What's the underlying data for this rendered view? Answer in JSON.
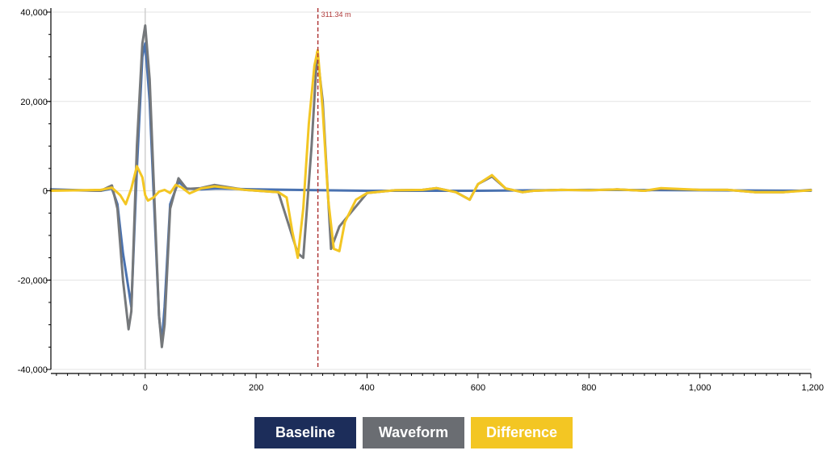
{
  "chart_data": {
    "type": "line",
    "title": "",
    "xlabel": "",
    "ylabel": "",
    "xlim": [
      -170,
      1200
    ],
    "ylim": [
      -40000,
      40000
    ],
    "x_ticks": [
      0,
      200,
      400,
      600,
      800,
      1000,
      1200
    ],
    "x_tick_labels": [
      "0",
      "200",
      "400",
      "600",
      "800",
      "1,000",
      "1,200"
    ],
    "y_ticks": [
      -40000,
      -20000,
      0,
      20000,
      40000
    ],
    "y_tick_labels": [
      "-40,000",
      "-20,000",
      "0",
      "20,000",
      "40,000"
    ],
    "grid": "horizontal",
    "zero_line_x": 0,
    "marker": {
      "x": 311.34,
      "label": "311.34 m",
      "color": "#b03a3a"
    },
    "series": [
      {
        "name": "Baseline",
        "color": "#4a72b0",
        "x": [
          -170,
          -80,
          -60,
          -50,
          -40,
          -30,
          -25,
          -15,
          -5,
          0,
          8,
          15,
          25,
          30,
          35,
          45,
          60,
          75,
          100,
          130,
          200,
          400,
          600,
          800,
          1000,
          1200
        ],
        "y": [
          300,
          0,
          500,
          -3000,
          -14000,
          -22000,
          -26000,
          5000,
          30000,
          33000,
          20000,
          0,
          -28000,
          -34000,
          -26000,
          -3000,
          2000,
          500,
          300,
          500,
          300,
          0,
          0,
          200,
          100,
          0
        ]
      },
      {
        "name": "Waveform",
        "color": "#75787b",
        "x": [
          -170,
          -80,
          -60,
          -50,
          -40,
          -30,
          -25,
          -15,
          -5,
          0,
          8,
          15,
          25,
          30,
          35,
          45,
          60,
          75,
          100,
          125,
          180,
          240,
          275,
          285,
          300,
          310,
          320,
          335,
          350,
          400,
          450,
          500,
          525,
          560,
          585,
          600,
          625,
          650,
          680,
          700,
          750,
          800,
          850,
          900,
          930,
          1000,
          1050,
          1100,
          1150,
          1200
        ],
        "y": [
          200,
          0,
          1200,
          -4000,
          -20000,
          -31000,
          -27000,
          10000,
          33000,
          37000,
          25000,
          3000,
          -28000,
          -35000,
          -30000,
          -4000,
          2800,
          400,
          600,
          1300,
          200,
          -300,
          -14000,
          -15000,
          10000,
          31000,
          20000,
          -13000,
          -8000,
          -500,
          100,
          200,
          600,
          -300,
          -2000,
          1500,
          3200,
          500,
          -300,
          0,
          200,
          100,
          300,
          0,
          400,
          200,
          200,
          -300,
          -300,
          200
        ]
      },
      {
        "name": "Difference",
        "color": "#f3c623",
        "x": [
          -170,
          -80,
          -60,
          -45,
          -35,
          -25,
          -15,
          -5,
          0,
          5,
          15,
          25,
          35,
          45,
          55,
          65,
          80,
          100,
          125,
          180,
          240,
          255,
          265,
          275,
          285,
          295,
          305,
          311,
          320,
          330,
          340,
          350,
          360,
          380,
          400,
          450,
          500,
          525,
          560,
          585,
          600,
          625,
          650,
          680,
          700,
          750,
          800,
          850,
          900,
          930,
          1000,
          1050,
          1100,
          1150,
          1200
        ],
        "y": [
          0,
          200,
          700,
          -1000,
          -3000,
          500,
          5500,
          3000,
          -1000,
          -2200,
          -1500,
          -200,
          200,
          -500,
          1300,
          800,
          -600,
          500,
          1000,
          200,
          -300,
          -1500,
          -9000,
          -15000,
          -4000,
          15000,
          28000,
          31500,
          18000,
          -2000,
          -13000,
          -13500,
          -7000,
          -2000,
          -500,
          100,
          200,
          600,
          -300,
          -2000,
          1500,
          3500,
          500,
          -300,
          0,
          200,
          100,
          300,
          0,
          600,
          200,
          200,
          -300,
          -300,
          100
        ]
      }
    ]
  },
  "legend": {
    "baseline": {
      "label": "Baseline",
      "color": "#1c2d5a"
    },
    "waveform": {
      "label": "Waveform",
      "color": "#6a6d72"
    },
    "difference": {
      "label": "Difference",
      "color": "#f3c623"
    }
  }
}
